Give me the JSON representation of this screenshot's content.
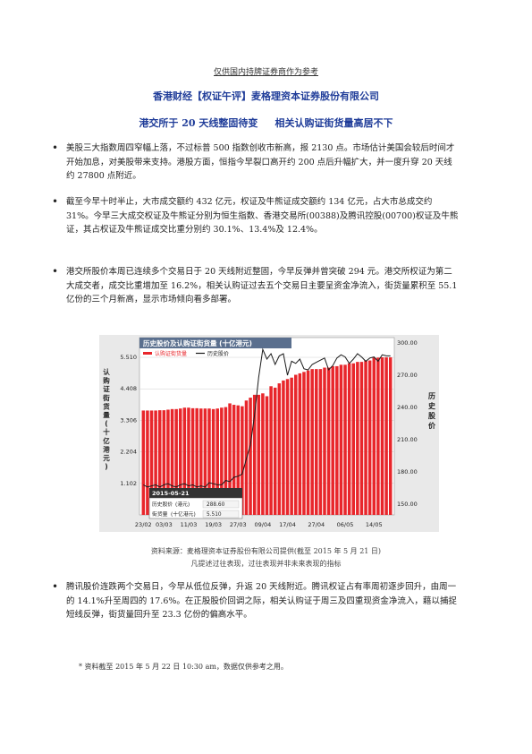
{
  "disclaimer": "仅供国内持牌证券商作为参考",
  "company": "香港财经【权证午评】麦格理资本证券股份有限公司",
  "headline": "港交所于 20 天线整固待变     相关认购证街货量高居不下",
  "paragraphs": [
    "美股三大指数周四窄幅上落，不过标普 500 指数创收市新高，报 2130 点。市场估计美国会较后时间才开始加息，对美股带来支持。港股方面，恒指今早裂口高开约 200 点后升幅扩大，并一度升穿 20 天线约 27800 点附近。",
    "截至今早十时半止，大市成交额约 432 亿元，权证及牛熊证成交额约 134 亿元，占大市总成交约 31%。今早三大成交权证及牛熊证分别为恒生指数、香港交易所(00388)及腾讯控股(00700)权证及牛熊证，其占权证及牛熊证成交比重分别约 30.1%、13.4%及 12.4%。",
    "港交所股价本周已连续多个交易日于 20 天线附近整固，今早反弹并曾突破 294 元。港交所权证为第二大成交者，成交比重增加至 16.2%，相关认购证过去五个交易日主要呈资金净流入，街货量累积至 55.1 亿份的三个月新高，显示市场倾向看多部署。",
    "腾讯股价连跌两个交易日，今早从低位反弹，升返 20 天线附近。腾讯权证占有率周初逐步回升，由周一的 14.1%升至周四的 17.6%。在正股股价回调之际，相关认购证于周三及四重现资金净流入，藉以捕捉短线反弹，街货量回升至 23.3 亿份的偏高水平。"
  ],
  "chart": {
    "title": "历史股价及认购证街货量 (十亿港元)",
    "legend_bar": "认购证街货量",
    "legend_line": "历史股价",
    "left_axis_label": [
      "认",
      "购",
      "证",
      "街",
      "货",
      "量",
      "(",
      "十",
      "亿",
      "港",
      "元",
      ")"
    ],
    "right_axis_label": [
      "历",
      "史",
      "股",
      "价"
    ],
    "left_ticks": [
      "5.510",
      "4.408",
      "3.306",
      "2.204",
      "1.102"
    ],
    "right_ticks": [
      "300.00",
      "270.00",
      "240.00",
      "210.00",
      "180.00",
      "150.00"
    ],
    "x_ticks": [
      "23/02",
      "03/03",
      "11/03",
      "19/03",
      "27/03",
      "09/04",
      "17/04",
      "27/04",
      "06/05",
      "14/05"
    ],
    "tooltip": {
      "date": "2015-05-21",
      "row1_label": "历史股价",
      "row1_unit": "(港元)",
      "row1_value": "288.60",
      "row2_label": "街货量",
      "row2_unit": "(十亿港元)",
      "row2_value": "5.510"
    },
    "colors": {
      "bar": "#e8262b",
      "line": "#1a1a1a",
      "header": "#5a6f8e",
      "bg": "#f2f2f2"
    }
  },
  "chart_data": {
    "type": "bar",
    "title": "历史股价及认购证街货量 (十亿港元)",
    "ylabel": "认购证街货量(十亿港元)",
    "y2label": "历史股价",
    "ylim": [
      0,
      6.2
    ],
    "y2lim": [
      140,
      305
    ],
    "series": [
      {
        "name": "认购证街货量",
        "axis": "left",
        "values": [
          3.65,
          3.65,
          3.65,
          3.65,
          3.66,
          3.66,
          3.68,
          3.7,
          3.7,
          3.72,
          3.75,
          3.75,
          3.73,
          3.73,
          3.72,
          3.72,
          3.72,
          3.7,
          3.72,
          3.75,
          3.77,
          3.9,
          3.85,
          3.83,
          3.8,
          4.0,
          4.1,
          4.2,
          4.2,
          4.25,
          4.15,
          4.5,
          4.45,
          4.6,
          4.7,
          4.75,
          4.8,
          4.9,
          4.95,
          5.0,
          5.05,
          5.1,
          5.1,
          5.1,
          5.15,
          5.15,
          5.2,
          5.2,
          5.25,
          5.25,
          5.3,
          5.3,
          5.35,
          5.35,
          5.4,
          5.4,
          5.5,
          5.5,
          5.51,
          5.51,
          5.51
        ]
      },
      {
        "name": "历史股价",
        "axis": "right",
        "values": [
          168,
          166,
          167,
          168,
          166,
          168,
          169,
          167,
          166,
          168,
          169,
          167,
          168,
          166,
          167,
          166,
          170,
          169,
          168,
          168,
          172,
          171,
          175,
          176,
          178,
          192,
          205,
          233,
          268,
          294,
          285,
          290,
          280,
          288,
          290,
          270,
          283,
          281,
          285,
          276,
          275,
          280,
          282,
          284,
          286,
          275,
          279,
          286,
          289,
          287,
          281,
          285,
          290,
          287,
          283,
          286,
          287,
          283,
          289,
          288,
          288
        ]
      }
    ]
  },
  "source": {
    "line1": "资料来源：麦格理资本证券股份有限公司提供(截至 2015 年 5 月 21 日)",
    "line2": "凡提述过往表现，过往表现并非未来表现的指标"
  },
  "footnote": "* 资料截至 2015 年 5 月 22 日 10:30 am，数据仅供参考之用。"
}
